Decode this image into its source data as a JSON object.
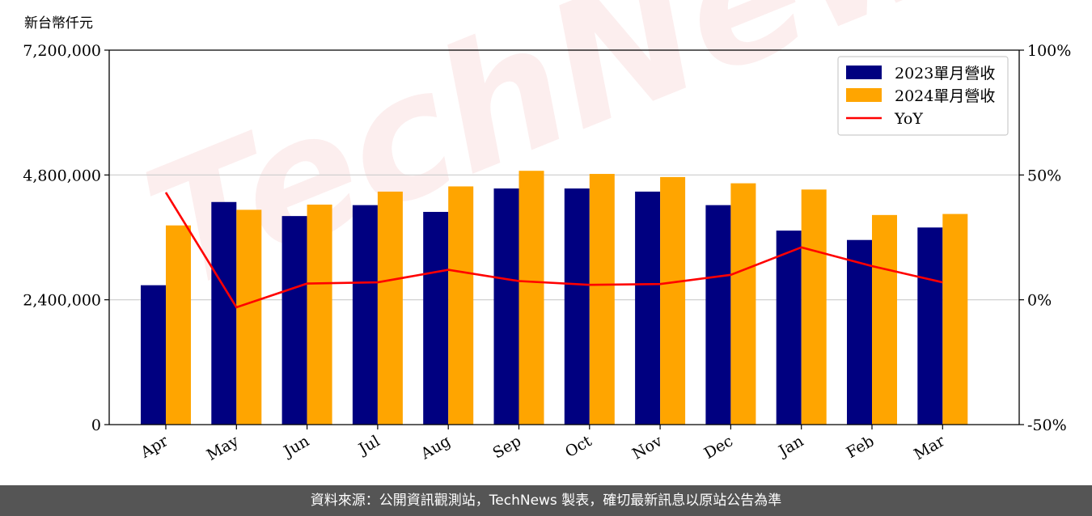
{
  "unit_label": "新台幣仟元",
  "watermark": "TechNews",
  "footer_text": "資料來源：公開資訊觀測站，TechNews 製表，確切最新訊息以原站公告為準",
  "chart_data": {
    "type": "bar",
    "title": "",
    "xlabel": "",
    "ylabel": "新台幣仟元",
    "categories": [
      "Apr",
      "May",
      "Jun",
      "Jul",
      "Aug",
      "Sep",
      "Oct",
      "Nov",
      "Dec",
      "Jan",
      "Feb",
      "Mar"
    ],
    "series": [
      {
        "name": "2023單月營收",
        "type": "bar",
        "axis": "left",
        "color": "#000080",
        "values": [
          2680000,
          4280000,
          4010000,
          4220000,
          4090000,
          4540000,
          4540000,
          4480000,
          4220000,
          3730000,
          3550000,
          3790000
        ]
      },
      {
        "name": "2024單月營收",
        "type": "bar",
        "axis": "left",
        "color": "#ffa500",
        "values": [
          3830000,
          4130000,
          4230000,
          4480000,
          4580000,
          4880000,
          4820000,
          4760000,
          4640000,
          4520000,
          4030000,
          4050000
        ]
      },
      {
        "name": "YoY",
        "type": "line",
        "axis": "right",
        "color": "#ff0000",
        "values": [
          43,
          -3,
          6.5,
          7,
          12,
          7.5,
          6,
          6.3,
          10,
          21,
          13.5,
          7
        ]
      }
    ],
    "ylim": [
      0,
      7200000
    ],
    "yticks": [
      0,
      2400000,
      4800000,
      7200000
    ],
    "ytick_labels": [
      "0",
      "2,400,000",
      "4,800,000",
      "7,200,000"
    ],
    "y2lim": [
      -50,
      100
    ],
    "y2ticks": [
      -50,
      0,
      50,
      100
    ],
    "y2tick_labels": [
      "-50%",
      "0%",
      "50%",
      "100%"
    ],
    "grid": "horizontal",
    "legend": "top-right"
  }
}
